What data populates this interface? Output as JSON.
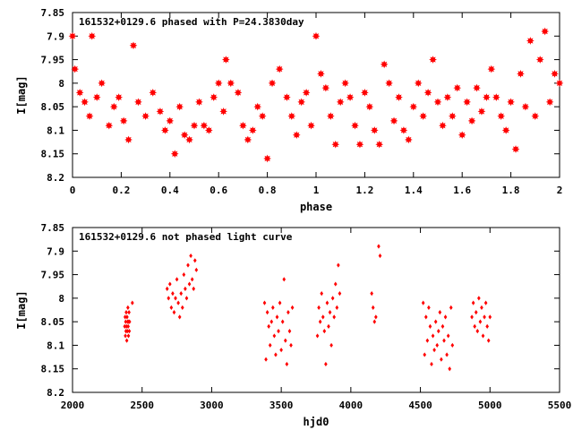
{
  "chart_data": [
    {
      "type": "scatter",
      "title": "161532+0129.6 phased with P=24.3830day",
      "xlabel": "phase",
      "ylabel": "I[mag]",
      "xlim": [
        0,
        2
      ],
      "ylim": [
        7.85,
        8.2
      ],
      "y_inverted": true,
      "grid": false,
      "xticks": [
        "0",
        "0.2",
        "0.4",
        "0.6",
        "0.8",
        "1",
        "1.2",
        "1.4",
        "1.6",
        "1.8",
        "2"
      ],
      "yticks": [
        "7.85",
        "7.9",
        "7.95",
        "8",
        "8.05",
        "8.1",
        "8.15",
        "8.2"
      ],
      "marker": "star",
      "color": "#ff0000",
      "points": [
        [
          0.0,
          7.9
        ],
        [
          0.01,
          7.97
        ],
        [
          0.03,
          8.02
        ],
        [
          0.05,
          8.04
        ],
        [
          0.07,
          8.07
        ],
        [
          0.08,
          7.9
        ],
        [
          0.1,
          8.03
        ],
        [
          0.12,
          8.0
        ],
        [
          0.15,
          8.09
        ],
        [
          0.17,
          8.05
        ],
        [
          0.19,
          8.03
        ],
        [
          0.21,
          8.08
        ],
        [
          0.23,
          8.12
        ],
        [
          0.25,
          7.92
        ],
        [
          0.27,
          8.04
        ],
        [
          0.3,
          8.07
        ],
        [
          0.33,
          8.02
        ],
        [
          0.36,
          8.06
        ],
        [
          0.38,
          8.1
        ],
        [
          0.4,
          8.08
        ],
        [
          0.42,
          8.15
        ],
        [
          0.44,
          8.05
        ],
        [
          0.46,
          8.11
        ],
        [
          0.48,
          8.12
        ],
        [
          0.5,
          8.09
        ],
        [
          0.52,
          8.04
        ],
        [
          0.54,
          8.09
        ],
        [
          0.56,
          8.1
        ],
        [
          0.58,
          8.03
        ],
        [
          0.6,
          8.0
        ],
        [
          0.62,
          8.06
        ],
        [
          0.63,
          7.95
        ],
        [
          0.65,
          8.0
        ],
        [
          0.68,
          8.02
        ],
        [
          0.7,
          8.09
        ],
        [
          0.72,
          8.12
        ],
        [
          0.74,
          8.1
        ],
        [
          0.76,
          8.05
        ],
        [
          0.78,
          8.07
        ],
        [
          0.8,
          8.16
        ],
        [
          0.82,
          8.0
        ],
        [
          0.85,
          7.97
        ],
        [
          0.88,
          8.03
        ],
        [
          0.9,
          8.07
        ],
        [
          0.92,
          8.11
        ],
        [
          0.94,
          8.04
        ],
        [
          0.96,
          8.02
        ],
        [
          0.98,
          8.09
        ],
        [
          1.0,
          7.9
        ],
        [
          1.02,
          7.98
        ],
        [
          1.04,
          8.01
        ],
        [
          1.06,
          8.07
        ],
        [
          1.08,
          8.13
        ],
        [
          1.1,
          8.04
        ],
        [
          1.12,
          8.0
        ],
        [
          1.14,
          8.03
        ],
        [
          1.16,
          8.09
        ],
        [
          1.18,
          8.13
        ],
        [
          1.2,
          8.02
        ],
        [
          1.22,
          8.05
        ],
        [
          1.24,
          8.1
        ],
        [
          1.26,
          8.13
        ],
        [
          1.28,
          7.96
        ],
        [
          1.3,
          8.0
        ],
        [
          1.32,
          8.08
        ],
        [
          1.34,
          8.03
        ],
        [
          1.36,
          8.1
        ],
        [
          1.38,
          8.12
        ],
        [
          1.4,
          8.05
        ],
        [
          1.42,
          8.0
        ],
        [
          1.44,
          8.07
        ],
        [
          1.46,
          8.02
        ],
        [
          1.48,
          7.95
        ],
        [
          1.5,
          8.04
        ],
        [
          1.52,
          8.09
        ],
        [
          1.54,
          8.03
        ],
        [
          1.56,
          8.07
        ],
        [
          1.58,
          8.01
        ],
        [
          1.6,
          8.11
        ],
        [
          1.62,
          8.04
        ],
        [
          1.64,
          8.08
        ],
        [
          1.66,
          8.01
        ],
        [
          1.68,
          8.06
        ],
        [
          1.7,
          8.03
        ],
        [
          1.72,
          7.97
        ],
        [
          1.74,
          8.03
        ],
        [
          1.76,
          8.07
        ],
        [
          1.78,
          8.1
        ],
        [
          1.8,
          8.04
        ],
        [
          1.82,
          8.14
        ],
        [
          1.84,
          7.98
        ],
        [
          1.86,
          8.05
        ],
        [
          1.88,
          7.91
        ],
        [
          1.9,
          8.07
        ],
        [
          1.92,
          7.95
        ],
        [
          1.94,
          7.89
        ],
        [
          1.96,
          8.04
        ],
        [
          1.98,
          7.98
        ],
        [
          2.0,
          8.0
        ]
      ]
    },
    {
      "type": "scatter",
      "title": "161532+0129.6 not phased light curve",
      "xlabel": "hjd0",
      "ylabel": "I[mag]",
      "xlim": [
        2000,
        5500
      ],
      "ylim": [
        7.85,
        8.2
      ],
      "y_inverted": true,
      "grid": false,
      "xticks": [
        "2000",
        "2500",
        "3000",
        "3500",
        "4000",
        "4500",
        "5000",
        "5500"
      ],
      "yticks": [
        "7.85",
        "7.9",
        "7.95",
        "8",
        "8.05",
        "8.1",
        "8.15",
        "8.2"
      ],
      "marker": "diamond",
      "color": "#ff0000",
      "points": [
        [
          2375,
          8.06
        ],
        [
          2378,
          8.04
        ],
        [
          2380,
          8.08
        ],
        [
          2382,
          8.05
        ],
        [
          2384,
          8.07
        ],
        [
          2386,
          8.03
        ],
        [
          2388,
          8.06
        ],
        [
          2390,
          8.09
        ],
        [
          2392,
          8.04
        ],
        [
          2394,
          8.07
        ],
        [
          2396,
          8.05
        ],
        [
          2398,
          8.02
        ],
        [
          2400,
          8.06
        ],
        [
          2402,
          8.08
        ],
        [
          2404,
          8.05
        ],
        [
          2406,
          8.03
        ],
        [
          2408,
          8.07
        ],
        [
          2410,
          8.05
        ],
        [
          2430,
          8.01
        ],
        [
          2680,
          7.98
        ],
        [
          2690,
          8.0
        ],
        [
          2700,
          7.97
        ],
        [
          2710,
          8.02
        ],
        [
          2720,
          7.99
        ],
        [
          2730,
          8.03
        ],
        [
          2740,
          8.0
        ],
        [
          2750,
          7.96
        ],
        [
          2760,
          8.01
        ],
        [
          2770,
          8.04
        ],
        [
          2780,
          7.99
        ],
        [
          2790,
          8.02
        ],
        [
          2800,
          7.95
        ],
        [
          2810,
          7.98
        ],
        [
          2820,
          8.0
        ],
        [
          2830,
          7.93
        ],
        [
          2840,
          7.97
        ],
        [
          2850,
          7.91
        ],
        [
          2860,
          7.96
        ],
        [
          2870,
          7.98
        ],
        [
          2880,
          7.92
        ],
        [
          2890,
          7.94
        ],
        [
          3380,
          8.01
        ],
        [
          3390,
          8.13
        ],
        [
          3400,
          8.03
        ],
        [
          3410,
          8.06
        ],
        [
          3420,
          8.1
        ],
        [
          3430,
          8.05
        ],
        [
          3440,
          8.02
        ],
        [
          3450,
          8.08
        ],
        [
          3460,
          8.12
        ],
        [
          3470,
          8.04
        ],
        [
          3480,
          8.07
        ],
        [
          3490,
          8.01
        ],
        [
          3500,
          8.11
        ],
        [
          3510,
          8.05
        ],
        [
          3520,
          7.96
        ],
        [
          3530,
          8.09
        ],
        [
          3540,
          8.14
        ],
        [
          3550,
          8.03
        ],
        [
          3560,
          8.07
        ],
        [
          3570,
          8.1
        ],
        [
          3580,
          8.02
        ],
        [
          3760,
          8.08
        ],
        [
          3770,
          8.02
        ],
        [
          3780,
          8.05
        ],
        [
          3790,
          7.99
        ],
        [
          3800,
          8.04
        ],
        [
          3810,
          8.07
        ],
        [
          3820,
          8.14
        ],
        [
          3830,
          8.01
        ],
        [
          3840,
          8.06
        ],
        [
          3850,
          8.03
        ],
        [
          3860,
          8.1
        ],
        [
          3870,
          8.0
        ],
        [
          3880,
          8.04
        ],
        [
          3890,
          7.97
        ],
        [
          3900,
          8.02
        ],
        [
          3910,
          7.93
        ],
        [
          3920,
          7.99
        ],
        [
          4150,
          7.99
        ],
        [
          4160,
          8.02
        ],
        [
          4170,
          8.05
        ],
        [
          4180,
          8.04
        ],
        [
          4200,
          7.89
        ],
        [
          4210,
          7.91
        ],
        [
          4520,
          8.01
        ],
        [
          4530,
          8.12
        ],
        [
          4540,
          8.04
        ],
        [
          4550,
          8.09
        ],
        [
          4560,
          8.02
        ],
        [
          4570,
          8.06
        ],
        [
          4580,
          8.14
        ],
        [
          4590,
          8.08
        ],
        [
          4600,
          8.11
        ],
        [
          4610,
          8.05
        ],
        [
          4620,
          8.1
        ],
        [
          4630,
          8.07
        ],
        [
          4640,
          8.03
        ],
        [
          4650,
          8.13
        ],
        [
          4660,
          8.06
        ],
        [
          4670,
          8.09
        ],
        [
          4680,
          8.04
        ],
        [
          4690,
          8.12
        ],
        [
          4700,
          8.08
        ],
        [
          4710,
          8.15
        ],
        [
          4720,
          8.02
        ],
        [
          4730,
          8.1
        ],
        [
          4870,
          8.04
        ],
        [
          4880,
          8.01
        ],
        [
          4890,
          8.06
        ],
        [
          4900,
          8.03
        ],
        [
          4910,
          8.07
        ],
        [
          4920,
          8.0
        ],
        [
          4930,
          8.05
        ],
        [
          4940,
          8.02
        ],
        [
          4950,
          8.08
        ],
        [
          4960,
          8.04
        ],
        [
          4970,
          8.01
        ],
        [
          4980,
          8.06
        ],
        [
          4990,
          8.09
        ],
        [
          5000,
          8.04
        ]
      ]
    }
  ]
}
